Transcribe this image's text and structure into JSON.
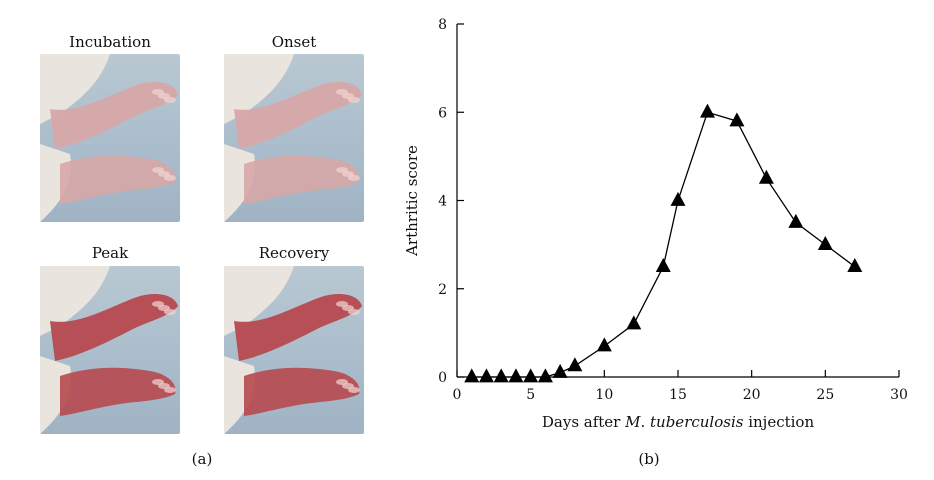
{
  "panel_a": {
    "caption": "(a)",
    "photos": [
      {
        "label": "Incubation",
        "stage": "incubation"
      },
      {
        "label": "Onset",
        "stage": "onset"
      },
      {
        "label": "Peak",
        "stage": "peak"
      },
      {
        "label": "Recovery",
        "stage": "recovery"
      }
    ]
  },
  "panel_b": {
    "caption": "(b)"
  },
  "colors": {
    "fur": "#e9e4de",
    "paw_mild": "#d7a7a6",
    "paw_inflamed": "#b7494f",
    "background": "#a9bccb",
    "marker": "#000000"
  },
  "chart_data": {
    "type": "line",
    "ylabel": "Arthritic score",
    "xlabel_parts": [
      "Days after ",
      "M. tuberculosis",
      " injection"
    ],
    "xlim": [
      0,
      30
    ],
    "ylim": [
      0,
      8
    ],
    "xticks": [
      0,
      5,
      10,
      15,
      20,
      25,
      30
    ],
    "yticks": [
      0,
      2,
      4,
      6,
      8
    ],
    "marker": "triangle",
    "grid": false,
    "series": [
      {
        "x": [
          1,
          2,
          3,
          4,
          5,
          6,
          7,
          8,
          10,
          12,
          14,
          15,
          17,
          19,
          21,
          23,
          25,
          27
        ],
        "y": [
          0,
          0,
          0,
          0,
          0,
          0,
          0.1,
          0.25,
          0.7,
          1.2,
          2.5,
          4.0,
          6.0,
          5.8,
          4.5,
          3.5,
          3.0,
          2.5
        ]
      }
    ]
  }
}
